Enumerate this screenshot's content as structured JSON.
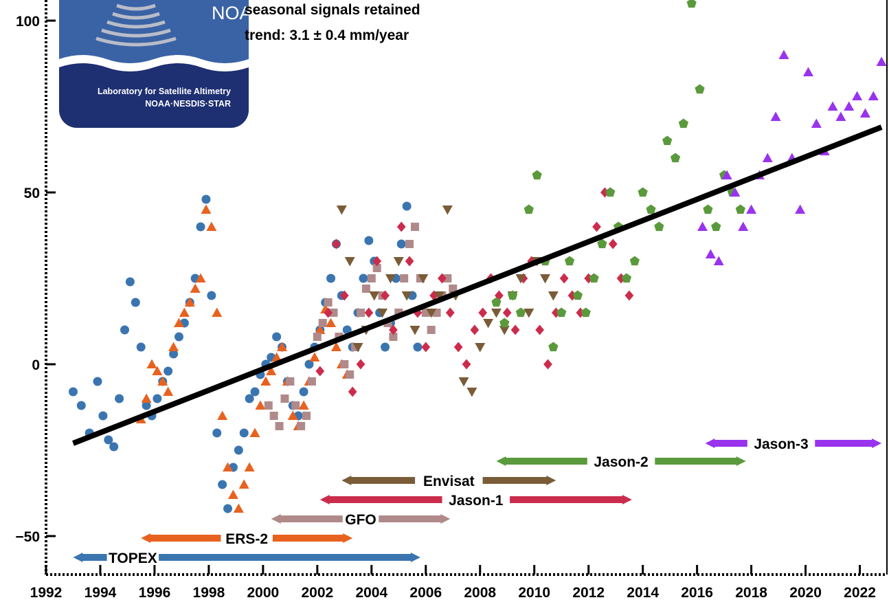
{
  "logo": {
    "word": "NOAA",
    "line1": "Laboratory for Satellite Altimetry",
    "line2": "NOAA·NESDIS·STAR"
  },
  "annotations": {
    "line1": "seasonal signals retained",
    "line2": "trend:  3.1 ± 0.4 mm/year"
  },
  "colors": {
    "TOPEX": "#3a75b0",
    "ERS-2": "#e8621f",
    "GFO": "#b08a8a",
    "Jason-1": "#cc2c4c",
    "Envisat": "#7a5c38",
    "Jason-2": "#5a9a3c",
    "Jason-3": "#9933ee",
    "trend": "#000000"
  },
  "chart_data": {
    "type": "scatter",
    "title": "",
    "xlabel": "",
    "ylabel": "",
    "xlim": [
      1992,
      2023
    ],
    "ylim": [
      -60,
      105
    ],
    "x_ticks": [
      1992,
      1994,
      1996,
      1998,
      2000,
      2002,
      2004,
      2006,
      2008,
      2010,
      2012,
      2014,
      2016,
      2018,
      2020,
      2022
    ],
    "x_tick_labels": [
      "1992",
      "1994",
      "1996",
      "1998",
      "2000",
      "2002",
      "2004",
      "2006",
      "2008",
      "2010",
      "2012",
      "2014",
      "2016",
      "2018",
      "2020",
      "2022"
    ],
    "y_ticks": [
      -50,
      0,
      50,
      100
    ],
    "y_tick_labels": [
      "−50",
      "0",
      "50",
      "100"
    ],
    "grid": false,
    "trend_line": {
      "x": [
        1993.0,
        2022.8
      ],
      "y": [
        -23,
        69
      ]
    },
    "series": [
      {
        "name": "TOPEX",
        "marker": "circle",
        "x": [
          1993.0,
          1993.3,
          1993.6,
          1993.9,
          1994.1,
          1994.3,
          1994.5,
          1994.7,
          1994.9,
          1995.1,
          1995.3,
          1995.5,
          1995.7,
          1995.9,
          1996.1,
          1996.3,
          1996.5,
          1996.7,
          1996.9,
          1997.1,
          1997.3,
          1997.5,
          1997.7,
          1997.9,
          1998.1,
          1998.3,
          1998.5,
          1998.7,
          1998.9,
          1999.1,
          1999.3,
          1999.5,
          1999.7,
          1999.9,
          2000.1,
          2000.3,
          2000.5,
          2000.7,
          2000.9,
          2001.1,
          2001.3,
          2001.5,
          2001.7,
          2001.9,
          2002.1,
          2002.3,
          2002.5,
          2002.7,
          2002.9,
          2003.1,
          2003.3,
          2003.5,
          2003.7,
          2003.9,
          2004.1,
          2004.3,
          2004.5,
          2004.7,
          2004.9,
          2005.1,
          2005.3,
          2005.5,
          2005.7
        ],
        "y": [
          -8,
          -12,
          -20,
          -5,
          -15,
          -22,
          -24,
          -10,
          10,
          24,
          18,
          5,
          -12,
          -15,
          -10,
          -5,
          -2,
          3,
          8,
          12,
          18,
          25,
          40,
          48,
          20,
          -20,
          -35,
          -42,
          -30,
          -25,
          -20,
          -10,
          -8,
          -3,
          0,
          2,
          8,
          5,
          -5,
          -12,
          -15,
          -8,
          0,
          5,
          10,
          18,
          25,
          35,
          20,
          10,
          5,
          15,
          25,
          36,
          30,
          15,
          5,
          12,
          25,
          35,
          46,
          20,
          5
        ]
      },
      {
        "name": "ERS-2",
        "marker": "triangle",
        "x": [
          1995.5,
          1995.7,
          1995.9,
          1996.1,
          1996.3,
          1996.5,
          1996.7,
          1996.9,
          1997.1,
          1997.3,
          1997.5,
          1997.7,
          1997.9,
          1998.1,
          1998.3,
          1998.5,
          1998.7,
          1998.9,
          1999.1,
          1999.3,
          1999.5,
          1999.7,
          1999.9,
          2000.1,
          2000.3,
          2000.5,
          2000.7,
          2000.9,
          2001.1,
          2001.3,
          2001.5,
          2001.7,
          2001.9,
          2002.1,
          2002.3,
          2002.5,
          2002.7,
          2002.9,
          2003.1
        ],
        "y": [
          -16,
          -10,
          0,
          -2,
          -5,
          -8,
          5,
          12,
          15,
          18,
          22,
          25,
          45,
          40,
          15,
          -15,
          -30,
          -38,
          -42,
          -35,
          -30,
          -20,
          -12,
          -5,
          -2,
          2,
          5,
          -5,
          -15,
          -18,
          -12,
          -5,
          2,
          10,
          16,
          12,
          5,
          0,
          -3
        ]
      },
      {
        "name": "GFO",
        "marker": "square",
        "x": [
          2000.2,
          2000.4,
          2000.6,
          2000.8,
          2001.0,
          2001.2,
          2001.4,
          2001.6,
          2001.8,
          2002.0,
          2002.2,
          2002.4,
          2002.6,
          2002.8,
          2003.0,
          2003.2,
          2003.4,
          2003.6,
          2003.8,
          2004.0,
          2004.2,
          2004.4,
          2004.6,
          2004.8,
          2005.0,
          2005.2,
          2005.4,
          2005.6,
          2005.8,
          2006.0,
          2006.2,
          2006.4,
          2006.6,
          2006.8,
          2007.0
        ],
        "y": [
          -12,
          -15,
          -18,
          -10,
          -5,
          -12,
          -18,
          -15,
          -5,
          8,
          12,
          18,
          15,
          8,
          0,
          -3,
          5,
          15,
          22,
          25,
          28,
          20,
          12,
          8,
          15,
          25,
          35,
          40,
          25,
          15,
          10,
          15,
          20,
          25,
          22
        ]
      },
      {
        "name": "Jason-1",
        "marker": "diamond",
        "x": [
          2002.1,
          2002.4,
          2002.7,
          2003.0,
          2003.3,
          2003.6,
          2003.9,
          2004.2,
          2004.5,
          2004.8,
          2005.1,
          2005.4,
          2005.7,
          2006.0,
          2006.3,
          2006.6,
          2006.9,
          2007.2,
          2007.5,
          2007.8,
          2008.1,
          2008.4,
          2008.7,
          2009.0,
          2009.3,
          2009.6,
          2009.9,
          2010.2,
          2010.5,
          2010.8,
          2011.1,
          2011.4,
          2011.7,
          2012.0,
          2012.3,
          2012.6,
          2012.9,
          2013.2,
          2013.5
        ],
        "y": [
          -2,
          15,
          35,
          20,
          -8,
          0,
          15,
          30,
          20,
          10,
          40,
          30,
          15,
          5,
          20,
          25,
          15,
          5,
          0,
          10,
          15,
          25,
          20,
          15,
          10,
          25,
          30,
          10,
          0,
          15,
          25,
          20,
          15,
          25,
          40,
          50,
          35,
          25,
          20
        ]
      },
      {
        "name": "Envisat",
        "marker": "triangle-down",
        "x": [
          2002.9,
          2003.2,
          2003.5,
          2003.8,
          2004.1,
          2004.4,
          2004.7,
          2005.0,
          2005.3,
          2005.6,
          2005.9,
          2006.2,
          2006.5,
          2006.8,
          2007.1,
          2007.4,
          2007.7,
          2008.0,
          2008.3,
          2008.6,
          2008.9,
          2009.2,
          2009.5,
          2009.8,
          2010.1,
          2010.4,
          2010.7
        ],
        "y": [
          45,
          30,
          5,
          10,
          20,
          15,
          25,
          30,
          20,
          10,
          25,
          15,
          20,
          45,
          20,
          -5,
          -8,
          5,
          12,
          15,
          10,
          20,
          25,
          15,
          30,
          25,
          20
        ]
      },
      {
        "name": "Jason-2",
        "marker": "pentagon",
        "x": [
          2008.6,
          2008.9,
          2009.2,
          2009.5,
          2009.8,
          2010.1,
          2010.4,
          2010.7,
          2011.0,
          2011.3,
          2011.6,
          2011.9,
          2012.2,
          2012.5,
          2012.8,
          2013.1,
          2013.4,
          2013.7,
          2014.0,
          2014.3,
          2014.6,
          2014.9,
          2015.2,
          2015.5,
          2015.8,
          2016.1,
          2016.4,
          2016.7,
          2017.0,
          2017.3,
          2017.6
        ],
        "y": [
          18,
          12,
          20,
          15,
          45,
          55,
          30,
          5,
          15,
          30,
          20,
          15,
          25,
          35,
          50,
          40,
          25,
          30,
          50,
          45,
          40,
          65,
          60,
          70,
          105,
          80,
          45,
          40,
          55,
          50,
          45
        ]
      },
      {
        "name": "Jason-3",
        "marker": "triangle",
        "x": [
          2016.2,
          2016.5,
          2016.8,
          2017.1,
          2017.4,
          2017.7,
          2018.0,
          2018.3,
          2018.6,
          2018.9,
          2019.2,
          2019.5,
          2019.8,
          2020.1,
          2020.4,
          2020.7,
          2021.0,
          2021.3,
          2021.6,
          2021.9,
          2022.2,
          2022.5,
          2022.8
        ],
        "y": [
          40,
          32,
          30,
          55,
          50,
          40,
          45,
          55,
          60,
          72,
          90,
          60,
          45,
          85,
          70,
          62,
          75,
          72,
          75,
          78,
          73,
          78,
          88
        ]
      }
    ],
    "missions": [
      {
        "name": "TOPEX",
        "start": 1993.0,
        "end": 2005.8
      },
      {
        "name": "ERS-2",
        "start": 1995.5,
        "end": 2003.3
      },
      {
        "name": "GFO",
        "start": 2000.3,
        "end": 2006.9
      },
      {
        "name": "Jason-1",
        "start": 2002.1,
        "end": 2013.6
      },
      {
        "name": "Envisat",
        "start": 2002.9,
        "end": 2010.8
      },
      {
        "name": "Jason-2",
        "start": 2008.6,
        "end": 2017.8
      },
      {
        "name": "Jason-3",
        "start": 2016.3,
        "end": 2022.8
      }
    ]
  }
}
